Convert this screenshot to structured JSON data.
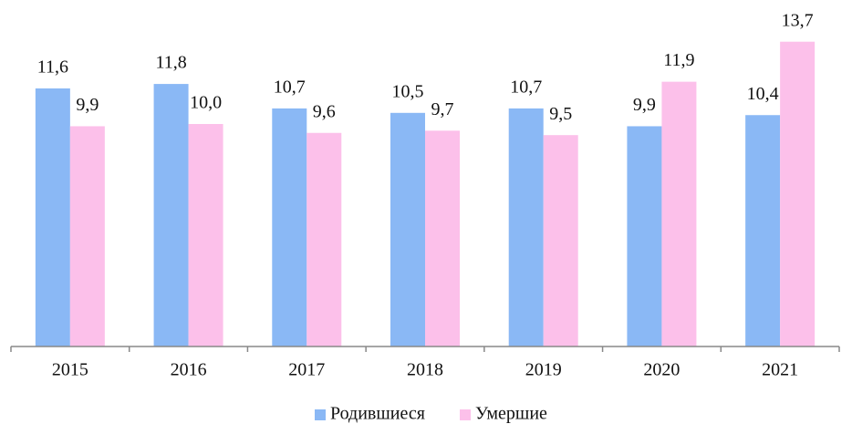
{
  "chart_data": {
    "type": "bar",
    "categories": [
      "2015",
      "2016",
      "2017",
      "2018",
      "2019",
      "2020",
      "2021"
    ],
    "series": [
      {
        "name": "Родившиеся",
        "color": "#8ab8f5",
        "values": [
          11.6,
          11.8,
          10.7,
          10.5,
          10.7,
          9.9,
          10.4
        ],
        "value_labels": [
          "11,6",
          "11,8",
          "10,7",
          "10,5",
          "10,7",
          "9,9",
          "10,4"
        ]
      },
      {
        "name": "Умершие",
        "color": "#fcc0ea",
        "values": [
          9.9,
          10.0,
          9.6,
          9.7,
          9.5,
          11.9,
          13.7
        ],
        "value_labels": [
          "9,9",
          "10,0",
          "9,6",
          "9,7",
          "9,5",
          "11,9",
          "13,7"
        ]
      }
    ],
    "ylim": [
      0,
      15
    ],
    "legend": "bottom"
  }
}
